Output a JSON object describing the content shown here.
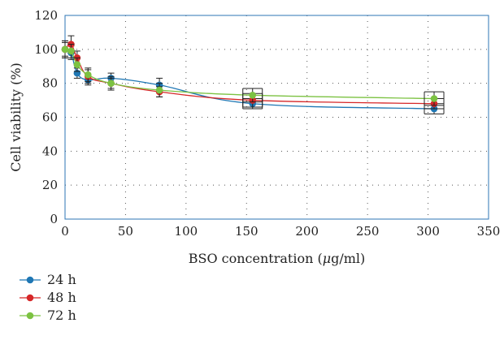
{
  "chart_data": {
    "type": "line",
    "xlabel_prefix": "BSO concentration (",
    "xlabel_unit": "μ",
    "xlabel_suffix": "g/ml)",
    "ylabel": "Cell viability (%)",
    "xlim": [
      0,
      350
    ],
    "ylim": [
      0,
      120
    ],
    "xticks": [
      "0",
      "50",
      "100",
      "150",
      "200",
      "250",
      "300",
      "350"
    ],
    "yticks": [
      "0",
      "20",
      "40",
      "60",
      "80",
      "100",
      "120"
    ],
    "grid": "dotted",
    "legend_position": "bottom-left",
    "series": [
      {
        "name": "24 h",
        "color": "#1f77b4",
        "x": [
          0,
          5,
          10,
          19,
          38,
          78,
          155,
          305
        ],
        "y": [
          100,
          98,
          86,
          82,
          83,
          79,
          68,
          65
        ],
        "err": [
          4,
          4,
          3,
          3,
          3,
          4,
          3,
          3
        ]
      },
      {
        "name": "48 h",
        "color": "#d62728",
        "x": [
          0,
          5,
          10,
          19,
          38,
          78,
          155,
          305
        ],
        "y": [
          100,
          103,
          95,
          84,
          80,
          75,
          70,
          68
        ],
        "err": [
          5,
          5,
          4,
          4,
          4,
          3,
          4,
          3
        ]
      },
      {
        "name": "72 h",
        "color": "#7cc242",
        "x": [
          0,
          5,
          10,
          19,
          38,
          78,
          155,
          305
        ],
        "y": [
          100,
          99,
          91,
          85,
          80,
          76,
          73,
          71
        ],
        "err": [
          5,
          4,
          4,
          4,
          3,
          4,
          4,
          4
        ]
      }
    ]
  }
}
